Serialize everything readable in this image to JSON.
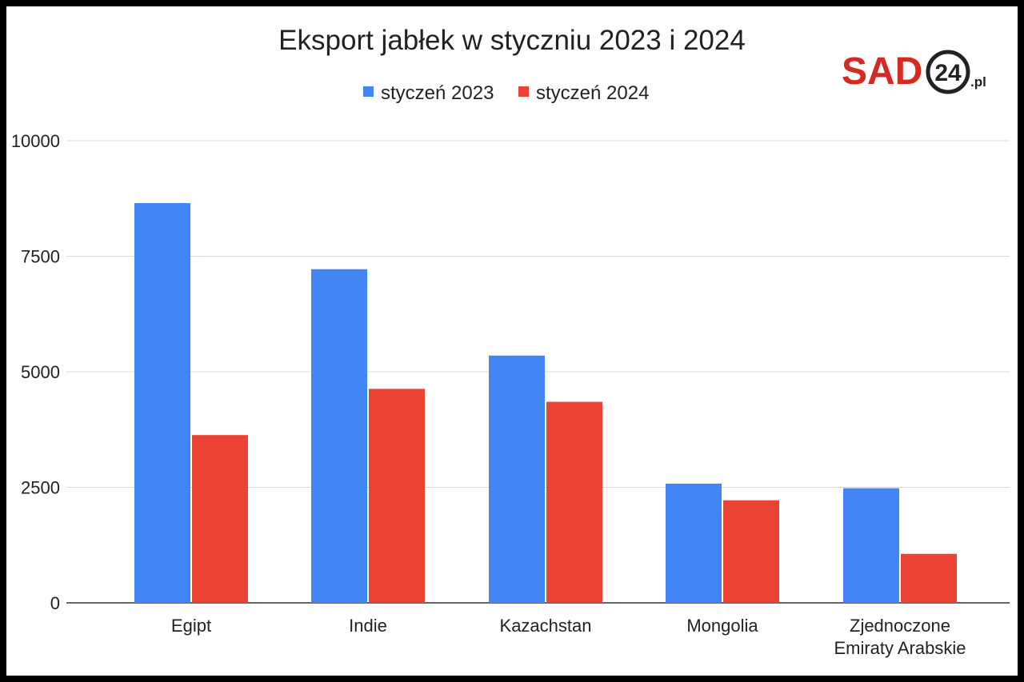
{
  "chart_data": {
    "type": "bar",
    "title": "Eksport jabłek w styczniu 2023 i 2024",
    "categories": [
      [
        "Egipt"
      ],
      [
        "Indie"
      ],
      [
        "Kazachstan"
      ],
      [
        "Mongolia"
      ],
      [
        "Zjednoczone",
        "Emiraty Arabskie"
      ]
    ],
    "series": [
      {
        "name": "styczeń 2023",
        "color": "#4285f4",
        "values": [
          8650,
          7220,
          5350,
          2580,
          2480
        ]
      },
      {
        "name": "styczeń 2024",
        "color": "#ea4335",
        "values": [
          3630,
          4630,
          4350,
          2220,
          1060
        ]
      }
    ],
    "ylim": [
      0,
      10000
    ],
    "yticks": [
      "0",
      "2500",
      "5000",
      "7500",
      "10000"
    ],
    "grid": true,
    "legend": "top"
  },
  "logo": {
    "brand": "SAD",
    "number": "24",
    "suffix": ".pl",
    "brand_color": "#d42a22"
  }
}
